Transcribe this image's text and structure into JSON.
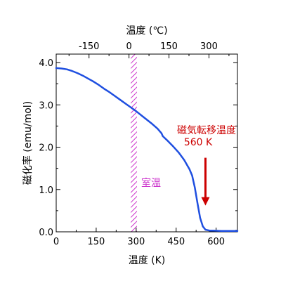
{
  "chart_data": {
    "type": "line",
    "title": "",
    "xlabel": "温度 (K)",
    "ylabel": "磁化率 (emu/mol)",
    "top_xlabel": "温度 (℃)",
    "xlim": [
      0,
      680
    ],
    "ylim": [
      0,
      4.2
    ],
    "x_ticks": [
      0,
      150,
      300,
      450,
      600
    ],
    "x_tick_labels": [
      "0",
      "150",
      "300",
      "450",
      "600"
    ],
    "y_ticks": [
      0.0,
      1.0,
      2.0,
      3.0,
      4.0
    ],
    "y_tick_labels": [
      "0.0",
      "1.0",
      "2.0",
      "3.0",
      "4.0"
    ],
    "top_ticks_celsius": [
      -150,
      0,
      150,
      300
    ],
    "top_tick_labels": [
      "-150",
      "0",
      "150",
      "300"
    ],
    "grid": false,
    "series": [
      {
        "color": "#1f4fe0",
        "x": [
          0,
          20,
          40,
          60,
          80,
          100,
          120,
          140,
          160,
          180,
          200,
          220,
          240,
          260,
          280,
          300,
          320,
          340,
          360,
          380,
          395,
          400,
          420,
          440,
          460,
          480,
          500,
          510,
          520,
          530,
          540,
          550,
          560,
          575,
          590,
          620,
          650,
          680
        ],
        "y": [
          3.87,
          3.86,
          3.84,
          3.8,
          3.75,
          3.69,
          3.62,
          3.55,
          3.47,
          3.38,
          3.3,
          3.21,
          3.12,
          3.03,
          2.94,
          2.85,
          2.75,
          2.65,
          2.55,
          2.44,
          2.33,
          2.26,
          2.14,
          2.01,
          1.87,
          1.7,
          1.48,
          1.33,
          1.05,
          0.68,
          0.33,
          0.13,
          0.05,
          0.03,
          0.03,
          0.02,
          0.02,
          0.02
        ]
      }
    ],
    "shaded_band": {
      "x_from": 280,
      "x_to": 303,
      "label": "室温",
      "color": "#cc33cc",
      "pattern": "diagonal-hatch"
    },
    "annotation": {
      "lines": [
        "磁気転移温度",
        "560 K"
      ],
      "color": "#cc0000",
      "arrow_x": 560,
      "arrow_y_from": 1.75,
      "arrow_y_to": 0.62
    }
  }
}
